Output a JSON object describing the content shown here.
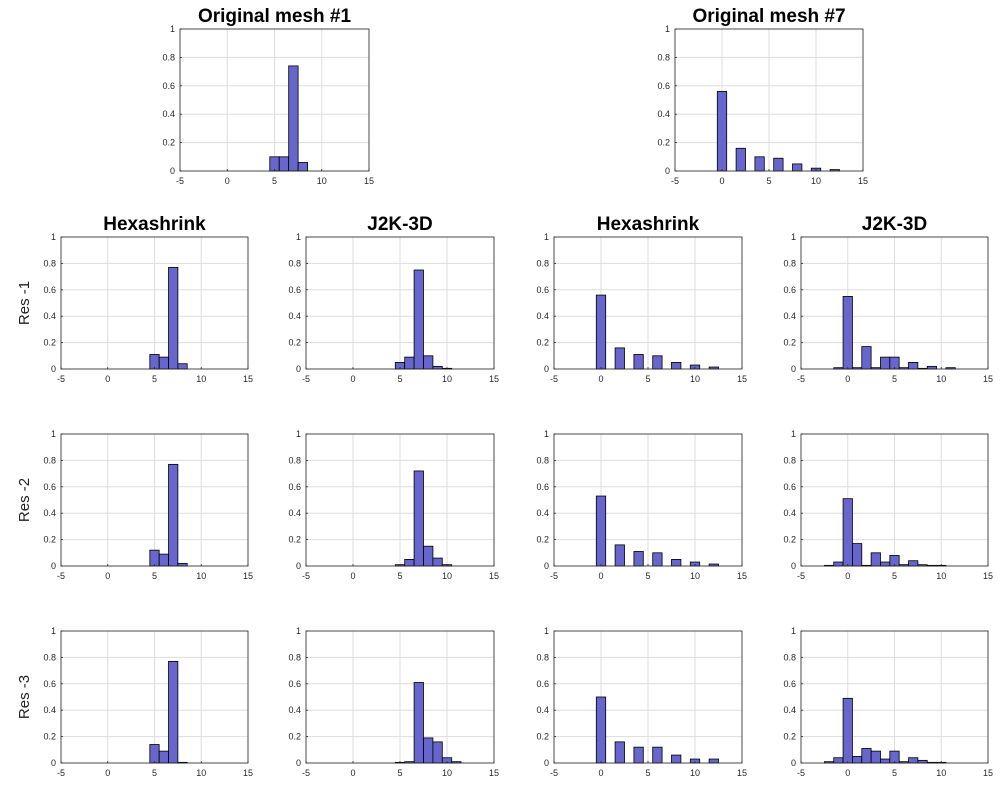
{
  "style": {
    "bar_fill": "#6666cc",
    "bar_edge": "#000000",
    "grid_color": "#dddddd",
    "axis_color": "#262626",
    "background": "#ffffff"
  },
  "row_labels": [
    "Res -1",
    "Res -2",
    "Res -3"
  ],
  "chart_data": [
    {
      "id": "orig1",
      "type": "bar",
      "title": "Original mesh #1",
      "xlim": [
        -5,
        15
      ],
      "ylim": [
        0,
        1
      ],
      "xticks": [
        "-5",
        "0",
        "5",
        "10",
        "15"
      ],
      "yticks": [
        "0",
        "0.2",
        "0.4",
        "0.6",
        "0.8",
        "1"
      ],
      "bin_width": 1,
      "bins": [
        {
          "x": 5,
          "y": 0.1
        },
        {
          "x": 6,
          "y": 0.1
        },
        {
          "x": 7,
          "y": 0.74
        },
        {
          "x": 8,
          "y": 0.06
        }
      ]
    },
    {
      "id": "orig7",
      "type": "bar",
      "title": "Original mesh #7",
      "xlim": [
        -5,
        15
      ],
      "ylim": [
        0,
        1
      ],
      "xticks": [
        "-5",
        "0",
        "5",
        "10",
        "15"
      ],
      "yticks": [
        "0",
        "0.2",
        "0.4",
        "0.6",
        "0.8",
        "1"
      ],
      "bin_width": 1,
      "bins": [
        {
          "x": 0,
          "y": 0.56
        },
        {
          "x": 2,
          "y": 0.16
        },
        {
          "x": 4,
          "y": 0.1
        },
        {
          "x": 6,
          "y": 0.09
        },
        {
          "x": 8,
          "y": 0.05
        },
        {
          "x": 10,
          "y": 0.02
        },
        {
          "x": 12,
          "y": 0.01
        }
      ]
    },
    {
      "id": "r1c1",
      "type": "bar",
      "title": "Hexashrink",
      "xlim": [
        -5,
        15
      ],
      "ylim": [
        0,
        1
      ],
      "xticks": [
        "-5",
        "0",
        "5",
        "10",
        "15"
      ],
      "yticks": [
        "0",
        "0.2",
        "0.4",
        "0.6",
        "0.8",
        "1"
      ],
      "bin_width": 1,
      "bins": [
        {
          "x": 5,
          "y": 0.11
        },
        {
          "x": 6,
          "y": 0.09
        },
        {
          "x": 7,
          "y": 0.77
        },
        {
          "x": 8,
          "y": 0.04
        }
      ]
    },
    {
      "id": "r1c2",
      "type": "bar",
      "title": "J2K-3D",
      "xlim": [
        -5,
        15
      ],
      "ylim": [
        0,
        1
      ],
      "xticks": [
        "-5",
        "0",
        "5",
        "10",
        "15"
      ],
      "yticks": [
        "0",
        "0.2",
        "0.4",
        "0.6",
        "0.8",
        "1"
      ],
      "bin_width": 1,
      "bins": [
        {
          "x": 5,
          "y": 0.05
        },
        {
          "x": 6,
          "y": 0.09
        },
        {
          "x": 7,
          "y": 0.75
        },
        {
          "x": 8,
          "y": 0.1
        },
        {
          "x": 9,
          "y": 0.02
        },
        {
          "x": 10,
          "y": 0.005
        }
      ]
    },
    {
      "id": "r1c3",
      "type": "bar",
      "title": "Hexashrink",
      "xlim": [
        -5,
        15
      ],
      "ylim": [
        0,
        1
      ],
      "xticks": [
        "-5",
        "0",
        "5",
        "10",
        "15"
      ],
      "yticks": [
        "0",
        "0.2",
        "0.4",
        "0.6",
        "0.8",
        "1"
      ],
      "bin_width": 1,
      "bins": [
        {
          "x": 0,
          "y": 0.56
        },
        {
          "x": 2,
          "y": 0.16
        },
        {
          "x": 4,
          "y": 0.11
        },
        {
          "x": 6,
          "y": 0.1
        },
        {
          "x": 8,
          "y": 0.05
        },
        {
          "x": 10,
          "y": 0.03
        },
        {
          "x": 12,
          "y": 0.015
        }
      ]
    },
    {
      "id": "r1c4",
      "type": "bar",
      "title": "J2K-3D",
      "xlim": [
        -5,
        15
      ],
      "ylim": [
        0,
        1
      ],
      "xticks": [
        "-5",
        "0",
        "5",
        "10",
        "15"
      ],
      "yticks": [
        "0",
        "0.2",
        "0.4",
        "0.6",
        "0.8",
        "1"
      ],
      "bin_width": 1,
      "bins": [
        {
          "x": -1,
          "y": 0.01
        },
        {
          "x": 0,
          "y": 0.55
        },
        {
          "x": 1,
          "y": 0.01
        },
        {
          "x": 2,
          "y": 0.17
        },
        {
          "x": 3,
          "y": 0.01
        },
        {
          "x": 4,
          "y": 0.09
        },
        {
          "x": 5,
          "y": 0.09
        },
        {
          "x": 6,
          "y": 0.01
        },
        {
          "x": 7,
          "y": 0.05
        },
        {
          "x": 8,
          "y": 0.005
        },
        {
          "x": 9,
          "y": 0.02
        },
        {
          "x": 11,
          "y": 0.01
        }
      ]
    },
    {
      "id": "r2c1",
      "type": "bar",
      "title": "",
      "xlim": [
        -5,
        15
      ],
      "ylim": [
        0,
        1
      ],
      "xticks": [
        "-5",
        "0",
        "5",
        "10",
        "15"
      ],
      "yticks": [
        "0",
        "0.2",
        "0.4",
        "0.6",
        "0.8",
        "1"
      ],
      "bin_width": 1,
      "bins": [
        {
          "x": 5,
          "y": 0.12
        },
        {
          "x": 6,
          "y": 0.09
        },
        {
          "x": 7,
          "y": 0.77
        },
        {
          "x": 8,
          "y": 0.02
        }
      ]
    },
    {
      "id": "r2c2",
      "type": "bar",
      "title": "",
      "xlim": [
        -5,
        15
      ],
      "ylim": [
        0,
        1
      ],
      "xticks": [
        "-5",
        "0",
        "5",
        "10",
        "15"
      ],
      "yticks": [
        "0",
        "0.2",
        "0.4",
        "0.6",
        "0.8",
        "1"
      ],
      "bin_width": 1,
      "bins": [
        {
          "x": 5,
          "y": 0.01
        },
        {
          "x": 6,
          "y": 0.05
        },
        {
          "x": 7,
          "y": 0.72
        },
        {
          "x": 8,
          "y": 0.15
        },
        {
          "x": 9,
          "y": 0.06
        },
        {
          "x": 10,
          "y": 0.01
        }
      ]
    },
    {
      "id": "r2c3",
      "type": "bar",
      "title": "",
      "xlim": [
        -5,
        15
      ],
      "ylim": [
        0,
        1
      ],
      "xticks": [
        "-5",
        "0",
        "5",
        "10",
        "15"
      ],
      "yticks": [
        "0",
        "0.2",
        "0.4",
        "0.6",
        "0.8",
        "1"
      ],
      "bin_width": 1,
      "bins": [
        {
          "x": 0,
          "y": 0.53
        },
        {
          "x": 2,
          "y": 0.16
        },
        {
          "x": 4,
          "y": 0.11
        },
        {
          "x": 6,
          "y": 0.1
        },
        {
          "x": 8,
          "y": 0.05
        },
        {
          "x": 10,
          "y": 0.03
        },
        {
          "x": 12,
          "y": 0.015
        }
      ]
    },
    {
      "id": "r2c4",
      "type": "bar",
      "title": "",
      "xlim": [
        -5,
        15
      ],
      "ylim": [
        0,
        1
      ],
      "xticks": [
        "-5",
        "0",
        "5",
        "10",
        "15"
      ],
      "yticks": [
        "0",
        "0.2",
        "0.4",
        "0.6",
        "0.8",
        "1"
      ],
      "bin_width": 1,
      "bins": [
        {
          "x": -2,
          "y": 0.005
        },
        {
          "x": -1,
          "y": 0.03
        },
        {
          "x": 0,
          "y": 0.51
        },
        {
          "x": 1,
          "y": 0.17
        },
        {
          "x": 2,
          "y": 0.005
        },
        {
          "x": 3,
          "y": 0.1
        },
        {
          "x": 4,
          "y": 0.03
        },
        {
          "x": 5,
          "y": 0.08
        },
        {
          "x": 6,
          "y": 0.01
        },
        {
          "x": 7,
          "y": 0.04
        },
        {
          "x": 8,
          "y": 0.01
        },
        {
          "x": 9,
          "y": 0.005
        },
        {
          "x": 10,
          "y": 0.005
        }
      ]
    },
    {
      "id": "r3c1",
      "type": "bar",
      "title": "",
      "xlim": [
        -5,
        15
      ],
      "ylim": [
        0,
        1
      ],
      "xticks": [
        "-5",
        "0",
        "5",
        "10",
        "15"
      ],
      "yticks": [
        "0",
        "0.2",
        "0.4",
        "0.6",
        "0.8",
        "1"
      ],
      "bin_width": 1,
      "bins": [
        {
          "x": 5,
          "y": 0.14
        },
        {
          "x": 6,
          "y": 0.09
        },
        {
          "x": 7,
          "y": 0.77
        },
        {
          "x": 8,
          "y": 0.005
        }
      ]
    },
    {
      "id": "r3c2",
      "type": "bar",
      "title": "",
      "xlim": [
        -5,
        15
      ],
      "ylim": [
        0,
        1
      ],
      "xticks": [
        "-5",
        "0",
        "5",
        "10",
        "15"
      ],
      "yticks": [
        "0",
        "0.2",
        "0.4",
        "0.6",
        "0.8",
        "1"
      ],
      "bin_width": 1,
      "bins": [
        {
          "x": 5,
          "y": 0.005
        },
        {
          "x": 6,
          "y": 0.01
        },
        {
          "x": 7,
          "y": 0.61
        },
        {
          "x": 8,
          "y": 0.19
        },
        {
          "x": 9,
          "y": 0.16
        },
        {
          "x": 10,
          "y": 0.04
        },
        {
          "x": 11,
          "y": 0.01
        }
      ]
    },
    {
      "id": "r3c3",
      "type": "bar",
      "title": "",
      "xlim": [
        -5,
        15
      ],
      "ylim": [
        0,
        1
      ],
      "xticks": [
        "-5",
        "0",
        "5",
        "10",
        "15"
      ],
      "yticks": [
        "0",
        "0.2",
        "0.4",
        "0.6",
        "0.8",
        "1"
      ],
      "bin_width": 1,
      "bins": [
        {
          "x": 0,
          "y": 0.5
        },
        {
          "x": 2,
          "y": 0.16
        },
        {
          "x": 4,
          "y": 0.12
        },
        {
          "x": 6,
          "y": 0.12
        },
        {
          "x": 8,
          "y": 0.06
        },
        {
          "x": 10,
          "y": 0.03
        },
        {
          "x": 12,
          "y": 0.03
        }
      ]
    },
    {
      "id": "r3c4",
      "type": "bar",
      "title": "",
      "xlim": [
        -5,
        15
      ],
      "ylim": [
        0,
        1
      ],
      "xticks": [
        "-5",
        "0",
        "5",
        "10",
        "15"
      ],
      "yticks": [
        "0",
        "0.2",
        "0.4",
        "0.6",
        "0.8",
        "1"
      ],
      "bin_width": 1,
      "bins": [
        {
          "x": -2,
          "y": 0.01
        },
        {
          "x": -1,
          "y": 0.04
        },
        {
          "x": 0,
          "y": 0.49
        },
        {
          "x": 1,
          "y": 0.05
        },
        {
          "x": 2,
          "y": 0.11
        },
        {
          "x": 3,
          "y": 0.09
        },
        {
          "x": 4,
          "y": 0.03
        },
        {
          "x": 5,
          "y": 0.09
        },
        {
          "x": 6,
          "y": 0.01
        },
        {
          "x": 7,
          "y": 0.04
        },
        {
          "x": 8,
          "y": 0.02
        },
        {
          "x": 9,
          "y": 0.005
        },
        {
          "x": 10,
          "y": 0.005
        }
      ]
    }
  ]
}
